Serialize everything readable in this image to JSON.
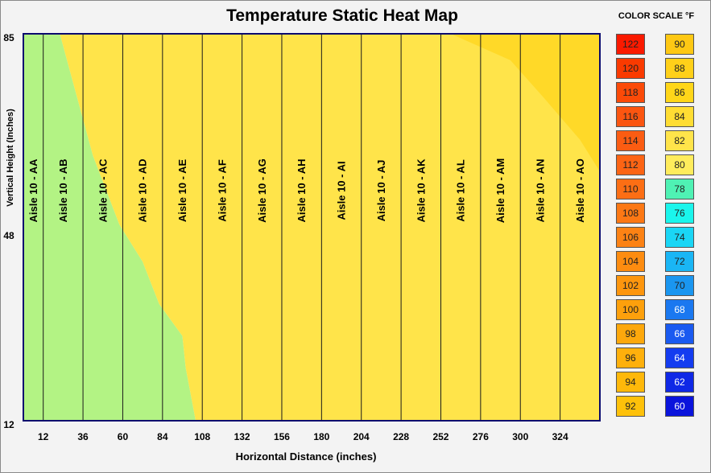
{
  "chart_data": {
    "type": "heatmap",
    "title": "Temperature Static Heat Map",
    "xlabel": "Horizontal Distance (inches)",
    "ylabel": "Vertical Height (Inches)",
    "xlim": [
      0,
      348
    ],
    "ylim": [
      12,
      85
    ],
    "x_ticks": [
      12,
      36,
      60,
      84,
      108,
      132,
      156,
      180,
      204,
      228,
      252,
      276,
      300,
      324
    ],
    "y_ticks": [
      85,
      48,
      12
    ],
    "aisles": [
      {
        "label": "Aisle 10 - AA",
        "x": 0
      },
      {
        "label": "Aisle 10 - AB",
        "x": 12
      },
      {
        "label": "Aisle 10 - AC",
        "x": 36
      },
      {
        "label": "Aisle 10 - AD",
        "x": 60
      },
      {
        "label": "Aisle 10 - AE",
        "x": 84
      },
      {
        "label": "Aisle 10 - AF",
        "x": 108
      },
      {
        "label": "Aisle 10 - AG",
        "x": 132
      },
      {
        "label": "Aisle 10 - AH",
        "x": 156
      },
      {
        "label": "Aisle 10 - AI",
        "x": 180
      },
      {
        "label": "Aisle 10 - AJ",
        "x": 204
      },
      {
        "label": "Aisle 10 - AK",
        "x": 228
      },
      {
        "label": "Aisle 10 - AL",
        "x": 252
      },
      {
        "label": "Aisle 10 - AM",
        "x": 276
      },
      {
        "label": "Aisle 10 - AN",
        "x": 300
      },
      {
        "label": "Aisle 10 - AO",
        "x": 324
      }
    ],
    "regions": [
      {
        "temp_f": 78,
        "color": "#b3f384",
        "boundary": [
          [
            0,
            12
          ],
          [
            0,
            85
          ],
          [
            22,
            85
          ],
          [
            42,
            62
          ],
          [
            58,
            49
          ],
          [
            72,
            42
          ],
          [
            82,
            34
          ],
          [
            96,
            28
          ],
          [
            98,
            22
          ],
          [
            104,
            12
          ]
        ]
      },
      {
        "temp_f": 80,
        "color": "#ffe44a",
        "boundary": [
          [
            22,
            85
          ],
          [
            348,
            85
          ],
          [
            348,
            12
          ],
          [
            104,
            12
          ],
          [
            98,
            22
          ],
          [
            96,
            28
          ],
          [
            82,
            34
          ],
          [
            72,
            42
          ],
          [
            58,
            49
          ],
          [
            42,
            62
          ]
        ]
      },
      {
        "temp_f": 82,
        "color": "#ffd928",
        "boundary": [
          [
            258,
            85
          ],
          [
            348,
            85
          ],
          [
            348,
            59
          ],
          [
            336,
            65
          ],
          [
            314,
            73
          ],
          [
            294,
            80
          ]
        ]
      }
    ]
  },
  "color_scale": {
    "title": "COLOR SCALE °F",
    "hot": [
      {
        "value": "122",
        "color": "#fa1a00"
      },
      {
        "value": "120",
        "color": "#fa3a00"
      },
      {
        "value": "118",
        "color": "#fb4a08"
      },
      {
        "value": "116",
        "color": "#fb5510"
      },
      {
        "value": "114",
        "color": "#fb5c12"
      },
      {
        "value": "112",
        "color": "#fc6414"
      },
      {
        "value": "110",
        "color": "#fc6e14"
      },
      {
        "value": "108",
        "color": "#fc7814"
      },
      {
        "value": "106",
        "color": "#fc8214"
      },
      {
        "value": "104",
        "color": "#fd8c10"
      },
      {
        "value": "102",
        "color": "#fd960e"
      },
      {
        "value": "100",
        "color": "#fda00c"
      },
      {
        "value": "98",
        "color": "#fda80c"
      },
      {
        "value": "96",
        "color": "#feb00c"
      },
      {
        "value": "94",
        "color": "#feb80a"
      },
      {
        "value": "92",
        "color": "#fec10a"
      }
    ],
    "cool": [
      {
        "value": "90",
        "color": "#fec814"
      },
      {
        "value": "88",
        "color": "#ffd019"
      },
      {
        "value": "86",
        "color": "#ffd619"
      },
      {
        "value": "84",
        "color": "#ffdd33"
      },
      {
        "value": "82",
        "color": "#ffe44a"
      },
      {
        "value": "80",
        "color": "#ffec5c"
      },
      {
        "value": "78",
        "color": "#4ff2b4"
      },
      {
        "value": "76",
        "color": "#1af5ec"
      },
      {
        "value": "74",
        "color": "#1ad6f5"
      },
      {
        "value": "72",
        "color": "#1ab6f5"
      },
      {
        "value": "70",
        "color": "#1a96f0"
      },
      {
        "value": "68",
        "color": "#1a78f0"
      },
      {
        "value": "66",
        "color": "#1a5af0"
      },
      {
        "value": "64",
        "color": "#143cf0"
      },
      {
        "value": "62",
        "color": "#0f28e6"
      },
      {
        "value": "60",
        "color": "#0a14dc"
      }
    ]
  }
}
